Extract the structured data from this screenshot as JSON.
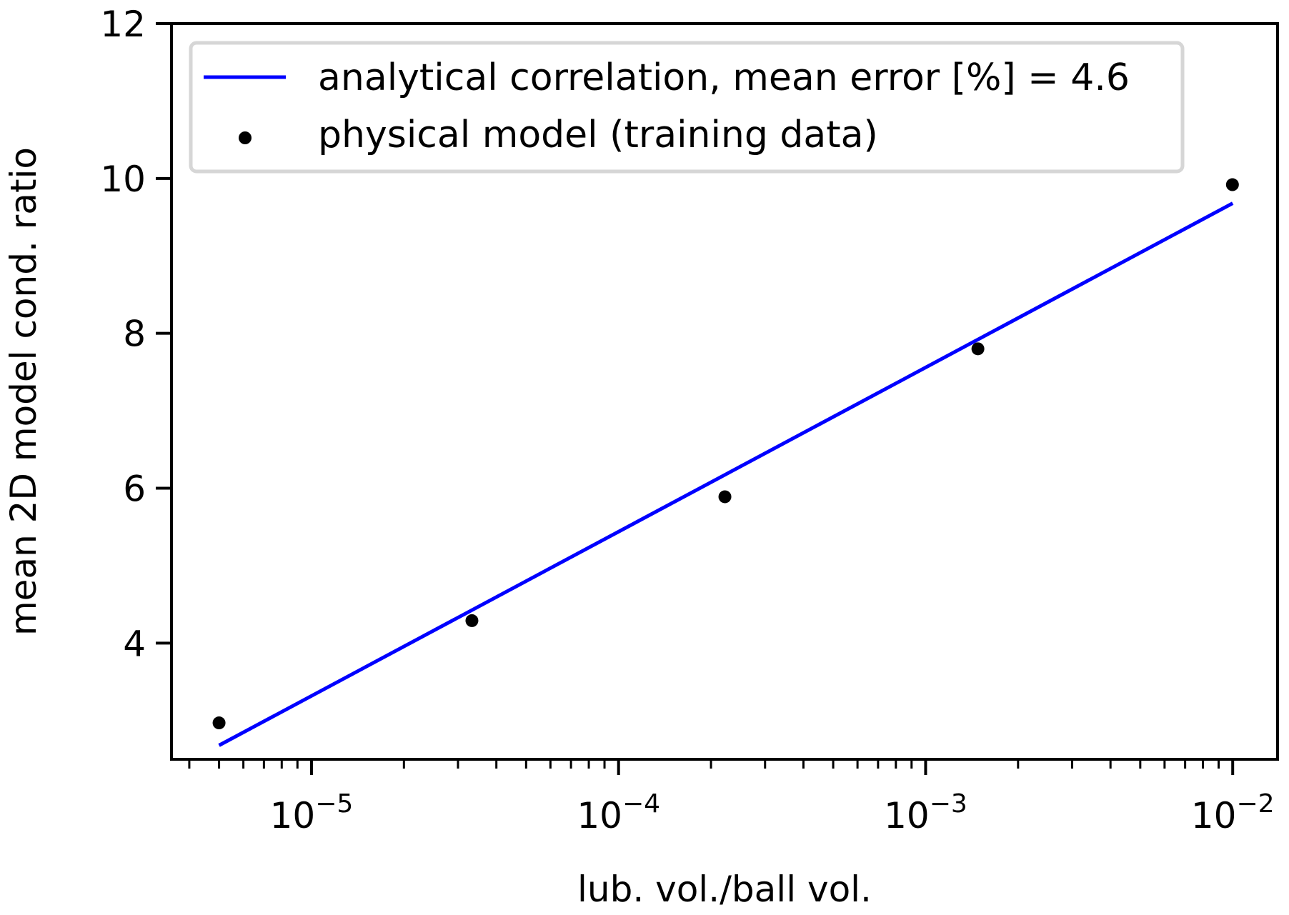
{
  "chart_data": {
    "type": "scatter",
    "title": "",
    "xlabel": "lub. vol./ball vol.",
    "ylabel": "mean 2D model cond. ratio",
    "xscale": "log",
    "xlim": [
      3.5e-06,
      0.014
    ],
    "ylim": [
      2.5,
      12
    ],
    "grid": false,
    "legend_position": "upper-left",
    "x_ticks": [
      {
        "base": "10",
        "exp": "−5",
        "value": 1e-05
      },
      {
        "base": "10",
        "exp": "−4",
        "value": 0.0001
      },
      {
        "base": "10",
        "exp": "−3",
        "value": 0.001
      },
      {
        "base": "10",
        "exp": "−2",
        "value": 0.01
      }
    ],
    "y_ticks": [
      {
        "label": "4",
        "value": 4
      },
      {
        "label": "6",
        "value": 6
      },
      {
        "label": "8",
        "value": 8
      },
      {
        "label": "10",
        "value": 10
      },
      {
        "label": "12",
        "value": 12
      }
    ],
    "series": [
      {
        "name": "analytical correlation, mean error [%] = 4.6",
        "kind": "line",
        "color": "#0000ff",
        "x": [
          5e-06,
          0.01
        ],
        "y": [
          2.68,
          9.68
        ]
      },
      {
        "name": "physical model (training data)",
        "kind": "scatter",
        "color": "#000000",
        "x": [
          5e-06,
          3.33e-05,
          0.000222,
          0.00148,
          0.00998
        ],
        "y": [
          2.97,
          4.29,
          5.89,
          7.8,
          9.92
        ]
      }
    ]
  }
}
